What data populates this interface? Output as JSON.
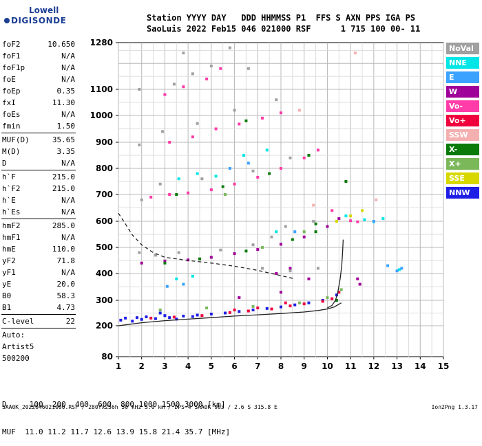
{
  "logo": {
    "line1": "Lowell",
    "line2": "DIGISONDE"
  },
  "header": {
    "line1": "Station YYYY DAY   DDD HHMMSS P1  FFS S AXN PPS IGA PS",
    "line2": "SaoLuis 2022 Feb15 046 021000 RSF      1 715 100 00- 11"
  },
  "params": {
    "group1": [
      {
        "key": "foF2",
        "val": "10.650"
      },
      {
        "key": "foF1",
        "val": "N/A"
      },
      {
        "key": "foF1p",
        "val": "N/A"
      },
      {
        "key": "foE",
        "val": "N/A"
      },
      {
        "key": "foEp",
        "val": "0.35"
      },
      {
        "key": "fxI",
        "val": "11.30"
      },
      {
        "key": "foEs",
        "val": "N/A"
      },
      {
        "key": "fmin",
        "val": "1.50"
      }
    ],
    "group2": [
      {
        "key": "MUF(D)",
        "val": "35.65"
      },
      {
        "key": "M(D)",
        "val": "3.35"
      },
      {
        "key": "D",
        "val": "N/A"
      }
    ],
    "group3": [
      {
        "key": "h`F",
        "val": "215.0"
      },
      {
        "key": "h`F2",
        "val": "215.0"
      },
      {
        "key": "h`E",
        "val": "N/A"
      },
      {
        "key": "h`Es",
        "val": "N/A"
      }
    ],
    "group4": [
      {
        "key": "hmF2",
        "val": "285.0"
      },
      {
        "key": "hmF1",
        "val": "N/A"
      },
      {
        "key": "hmE",
        "val": "110.0"
      },
      {
        "key": "yF2",
        "val": "71.8"
      },
      {
        "key": "yF1",
        "val": "N/A"
      },
      {
        "key": "yE",
        "val": "20.0"
      },
      {
        "key": "B0",
        "val": "58.3"
      },
      {
        "key": "B1",
        "val": "4.73"
      }
    ],
    "group5": [
      {
        "key": "C-level",
        "val": "22"
      }
    ],
    "auto": [
      "Auto:",
      "Artist5",
      "500200"
    ]
  },
  "legend": [
    {
      "label": "NoVal",
      "color": "#a0a0a0"
    },
    {
      "label": "NNE",
      "color": "#00e6e6"
    },
    {
      "label": "E",
      "color": "#3ba3ff"
    },
    {
      "label": "W",
      "color": "#a0009a"
    },
    {
      "label": "Vo-",
      "color": "#ff3ca8"
    },
    {
      "label": "Vo+",
      "color": "#f0003c"
    },
    {
      "label": "SSW",
      "color": "#f4b0b0"
    },
    {
      "label": "X-",
      "color": "#0a7a0a"
    },
    {
      "label": "X+",
      "color": "#7ab85a"
    },
    {
      "label": "SSE",
      "color": "#d8d800"
    },
    {
      "label": "NNW",
      "color": "#1e1ee6"
    }
  ],
  "bottom": {
    "line1": "D     100  200  400  600  800 1000 1500 3000 [km]",
    "line2": "MUF  11.0 11.2 11.7 12.6 13.9 15.8 21.4 35.7 [MHz]"
  },
  "footer": "SAA0K_2022046021000.RSF / 280fx256h 50 kHz 5.0 km / DPS-4 SAA0K 903 / 2.6 S 315.8 E",
  "footer_version": "Ion2Png 1.3.17",
  "chart_data": {
    "type": "scatter",
    "x_ticks": [
      "1",
      "2",
      "3",
      "4",
      "5",
      "6",
      "7",
      "8",
      "9",
      "10",
      "11",
      "12",
      "13",
      "14",
      "15"
    ],
    "y_ticks": [
      "80",
      "200",
      "300",
      "400",
      "500",
      "600",
      "700",
      "800",
      "900",
      "1000",
      "1100",
      "1280"
    ],
    "xlim": [
      1,
      15
    ],
    "ylim": [
      80,
      1280
    ],
    "grid": true,
    "series": [
      {
        "color": "#1e1ee6",
        "points": [
          [
            1.1,
            222
          ],
          [
            1.6,
            218
          ],
          [
            2.0,
            225
          ],
          [
            2.6,
            228
          ],
          [
            3.2,
            232
          ],
          [
            3.8,
            238
          ],
          [
            4.4,
            242
          ],
          [
            5.0,
            246
          ],
          [
            5.6,
            250
          ],
          [
            6.2,
            256
          ],
          [
            6.8,
            262
          ],
          [
            7.4,
            268
          ],
          [
            8.0,
            274
          ],
          [
            8.6,
            282
          ],
          [
            9.2,
            290
          ],
          [
            9.8,
            300
          ],
          [
            10.4,
            320
          ],
          [
            1.3,
            230
          ],
          [
            2.2,
            235
          ],
          [
            3.0,
            240
          ],
          [
            3.5,
            226
          ],
          [
            4.2,
            236
          ],
          [
            2.8,
            250
          ],
          [
            1.8,
            232
          ]
        ]
      },
      {
        "color": "#f0003c",
        "points": [
          [
            2.4,
            230
          ],
          [
            3.4,
            234
          ],
          [
            4.6,
            240
          ],
          [
            5.8,
            252
          ],
          [
            6.6,
            258
          ],
          [
            7.6,
            266
          ],
          [
            8.4,
            278
          ],
          [
            9.0,
            286
          ],
          [
            9.8,
            296
          ],
          [
            10.2,
            306
          ],
          [
            10.5,
            330
          ],
          [
            6.0,
            262
          ],
          [
            7.0,
            270
          ],
          [
            8.2,
            290
          ]
        ]
      },
      {
        "color": "#a0009a",
        "points": [
          [
            2.0,
            440
          ],
          [
            3.0,
            448
          ],
          [
            4.0,
            452
          ],
          [
            5.0,
            462
          ],
          [
            6.0,
            476
          ],
          [
            7.0,
            492
          ],
          [
            8.0,
            512
          ],
          [
            9.0,
            540
          ],
          [
            10.0,
            580
          ],
          [
            10.5,
            610
          ],
          [
            11.3,
            380
          ],
          [
            11.4,
            360
          ],
          [
            7.8,
            400
          ],
          [
            8.4,
            420
          ],
          [
            9.2,
            380
          ],
          [
            6.2,
            310
          ],
          [
            8.0,
            330
          ]
        ]
      },
      {
        "color": "#ff3ca8",
        "points": [
          [
            2.4,
            690
          ],
          [
            3.2,
            700
          ],
          [
            4.0,
            706
          ],
          [
            5.0,
            718
          ],
          [
            6.0,
            740
          ],
          [
            7.0,
            766
          ],
          [
            8.0,
            800
          ],
          [
            9.0,
            840
          ],
          [
            9.6,
            870
          ],
          [
            3.2,
            900
          ],
          [
            4.2,
            920
          ],
          [
            5.2,
            950
          ],
          [
            6.2,
            968
          ],
          [
            7.2,
            990
          ],
          [
            8.0,
            1010
          ],
          [
            3.0,
            1080
          ],
          [
            3.8,
            1110
          ],
          [
            4.8,
            1140
          ],
          [
            5.4,
            1180
          ],
          [
            10.2,
            640
          ],
          [
            11.0,
            602
          ],
          [
            11.3,
            598
          ]
        ]
      },
      {
        "color": "#0a7a0a",
        "points": [
          [
            3.0,
            440
          ],
          [
            4.5,
            456
          ],
          [
            6.5,
            486
          ],
          [
            8.5,
            530
          ],
          [
            9.5,
            560
          ],
          [
            3.5,
            700
          ],
          [
            5.5,
            730
          ],
          [
            7.5,
            780
          ],
          [
            9.2,
            850
          ],
          [
            10.8,
            750
          ],
          [
            6.5,
            980
          ],
          [
            9.5,
            590
          ],
          [
            10.4,
            300
          ]
        ]
      },
      {
        "color": "#7ab85a",
        "points": [
          [
            2.8,
            262
          ],
          [
            4.8,
            270
          ],
          [
            6.8,
            276
          ],
          [
            8.8,
            290
          ],
          [
            10.0,
            310
          ],
          [
            10.6,
            340
          ],
          [
            7.2,
            500
          ],
          [
            9.0,
            560
          ],
          [
            5.6,
            700
          ]
        ]
      },
      {
        "color": "#00e6e6",
        "points": [
          [
            11.6,
            606
          ],
          [
            12.0,
            598
          ],
          [
            12.4,
            610
          ],
          [
            13.1,
            415
          ],
          [
            3.6,
            760
          ],
          [
            4.4,
            780
          ],
          [
            6.4,
            850
          ],
          [
            7.4,
            870
          ],
          [
            5.2,
            770
          ],
          [
            3.5,
            380
          ],
          [
            4.2,
            390
          ],
          [
            7.8,
            560
          ],
          [
            10.8,
            620
          ]
        ]
      },
      {
        "color": "#3ba3ff",
        "points": [
          [
            13.0,
            410
          ],
          [
            13.2,
            420
          ],
          [
            12.6,
            430
          ],
          [
            12.0,
            600
          ],
          [
            5.8,
            800
          ],
          [
            6.6,
            820
          ],
          [
            3.1,
            352
          ],
          [
            3.8,
            360
          ],
          [
            8.6,
            560
          ]
        ]
      },
      {
        "color": "#a0a0a0",
        "points": [
          [
            2.6,
            470
          ],
          [
            3.6,
            480
          ],
          [
            5.4,
            490
          ],
          [
            6.8,
            510
          ],
          [
            7.6,
            540
          ],
          [
            8.2,
            580
          ],
          [
            9.4,
            600
          ],
          [
            2.8,
            740
          ],
          [
            4.6,
            760
          ],
          [
            6.8,
            790
          ],
          [
            8.4,
            840
          ],
          [
            2.9,
            940
          ],
          [
            4.4,
            970
          ],
          [
            6.0,
            1020
          ],
          [
            7.8,
            1060
          ],
          [
            3.4,
            1120
          ],
          [
            4.2,
            1160
          ],
          [
            5.0,
            1190
          ],
          [
            6.6,
            1180
          ],
          [
            3.8,
            1240
          ],
          [
            5.8,
            1260
          ],
          [
            1.9,
            1100
          ],
          [
            1.9,
            890
          ],
          [
            2.0,
            680
          ],
          [
            1.9,
            480
          ],
          [
            8.4,
            410
          ],
          [
            9.6,
            420
          ],
          [
            7.2,
            420
          ]
        ]
      },
      {
        "color": "#d8d800",
        "points": [
          [
            11.5,
            640
          ],
          [
            10.4,
            600
          ],
          [
            11.0,
            620
          ]
        ]
      },
      {
        "color": "#f4b0b0",
        "points": [
          [
            12.1,
            680
          ],
          [
            11.2,
            1240
          ],
          [
            8.8,
            1020
          ],
          [
            9.4,
            660
          ]
        ]
      }
    ],
    "traced_curves": [
      {
        "style": "solid",
        "points": [
          [
            1.0,
            200
          ],
          [
            1.5,
            206
          ],
          [
            2.0,
            212
          ],
          [
            3.0,
            220
          ],
          [
            4.0,
            226
          ],
          [
            5.0,
            232
          ],
          [
            6.0,
            238
          ],
          [
            7.0,
            243
          ],
          [
            8.0,
            248
          ],
          [
            9.0,
            254
          ],
          [
            9.6,
            260
          ],
          [
            10.0,
            266
          ],
          [
            10.3,
            274
          ],
          [
            10.6,
            290
          ]
        ]
      },
      {
        "style": "solid",
        "points": [
          [
            10.0,
            270
          ],
          [
            10.2,
            280
          ],
          [
            10.35,
            300
          ],
          [
            10.45,
            330
          ],
          [
            10.55,
            380
          ],
          [
            10.62,
            430
          ],
          [
            10.66,
            490
          ],
          [
            10.68,
            530
          ]
        ]
      },
      {
        "style": "dashed",
        "points": [
          [
            1.0,
            630
          ],
          [
            1.3,
            590
          ],
          [
            1.6,
            548
          ],
          [
            2.0,
            510
          ],
          [
            2.5,
            480
          ],
          [
            3.0,
            462
          ],
          [
            4.0,
            450
          ],
          [
            5.0,
            440
          ],
          [
            6.0,
            428
          ],
          [
            7.0,
            412
          ],
          [
            8.0,
            392
          ],
          [
            8.6,
            380
          ]
        ]
      }
    ]
  }
}
